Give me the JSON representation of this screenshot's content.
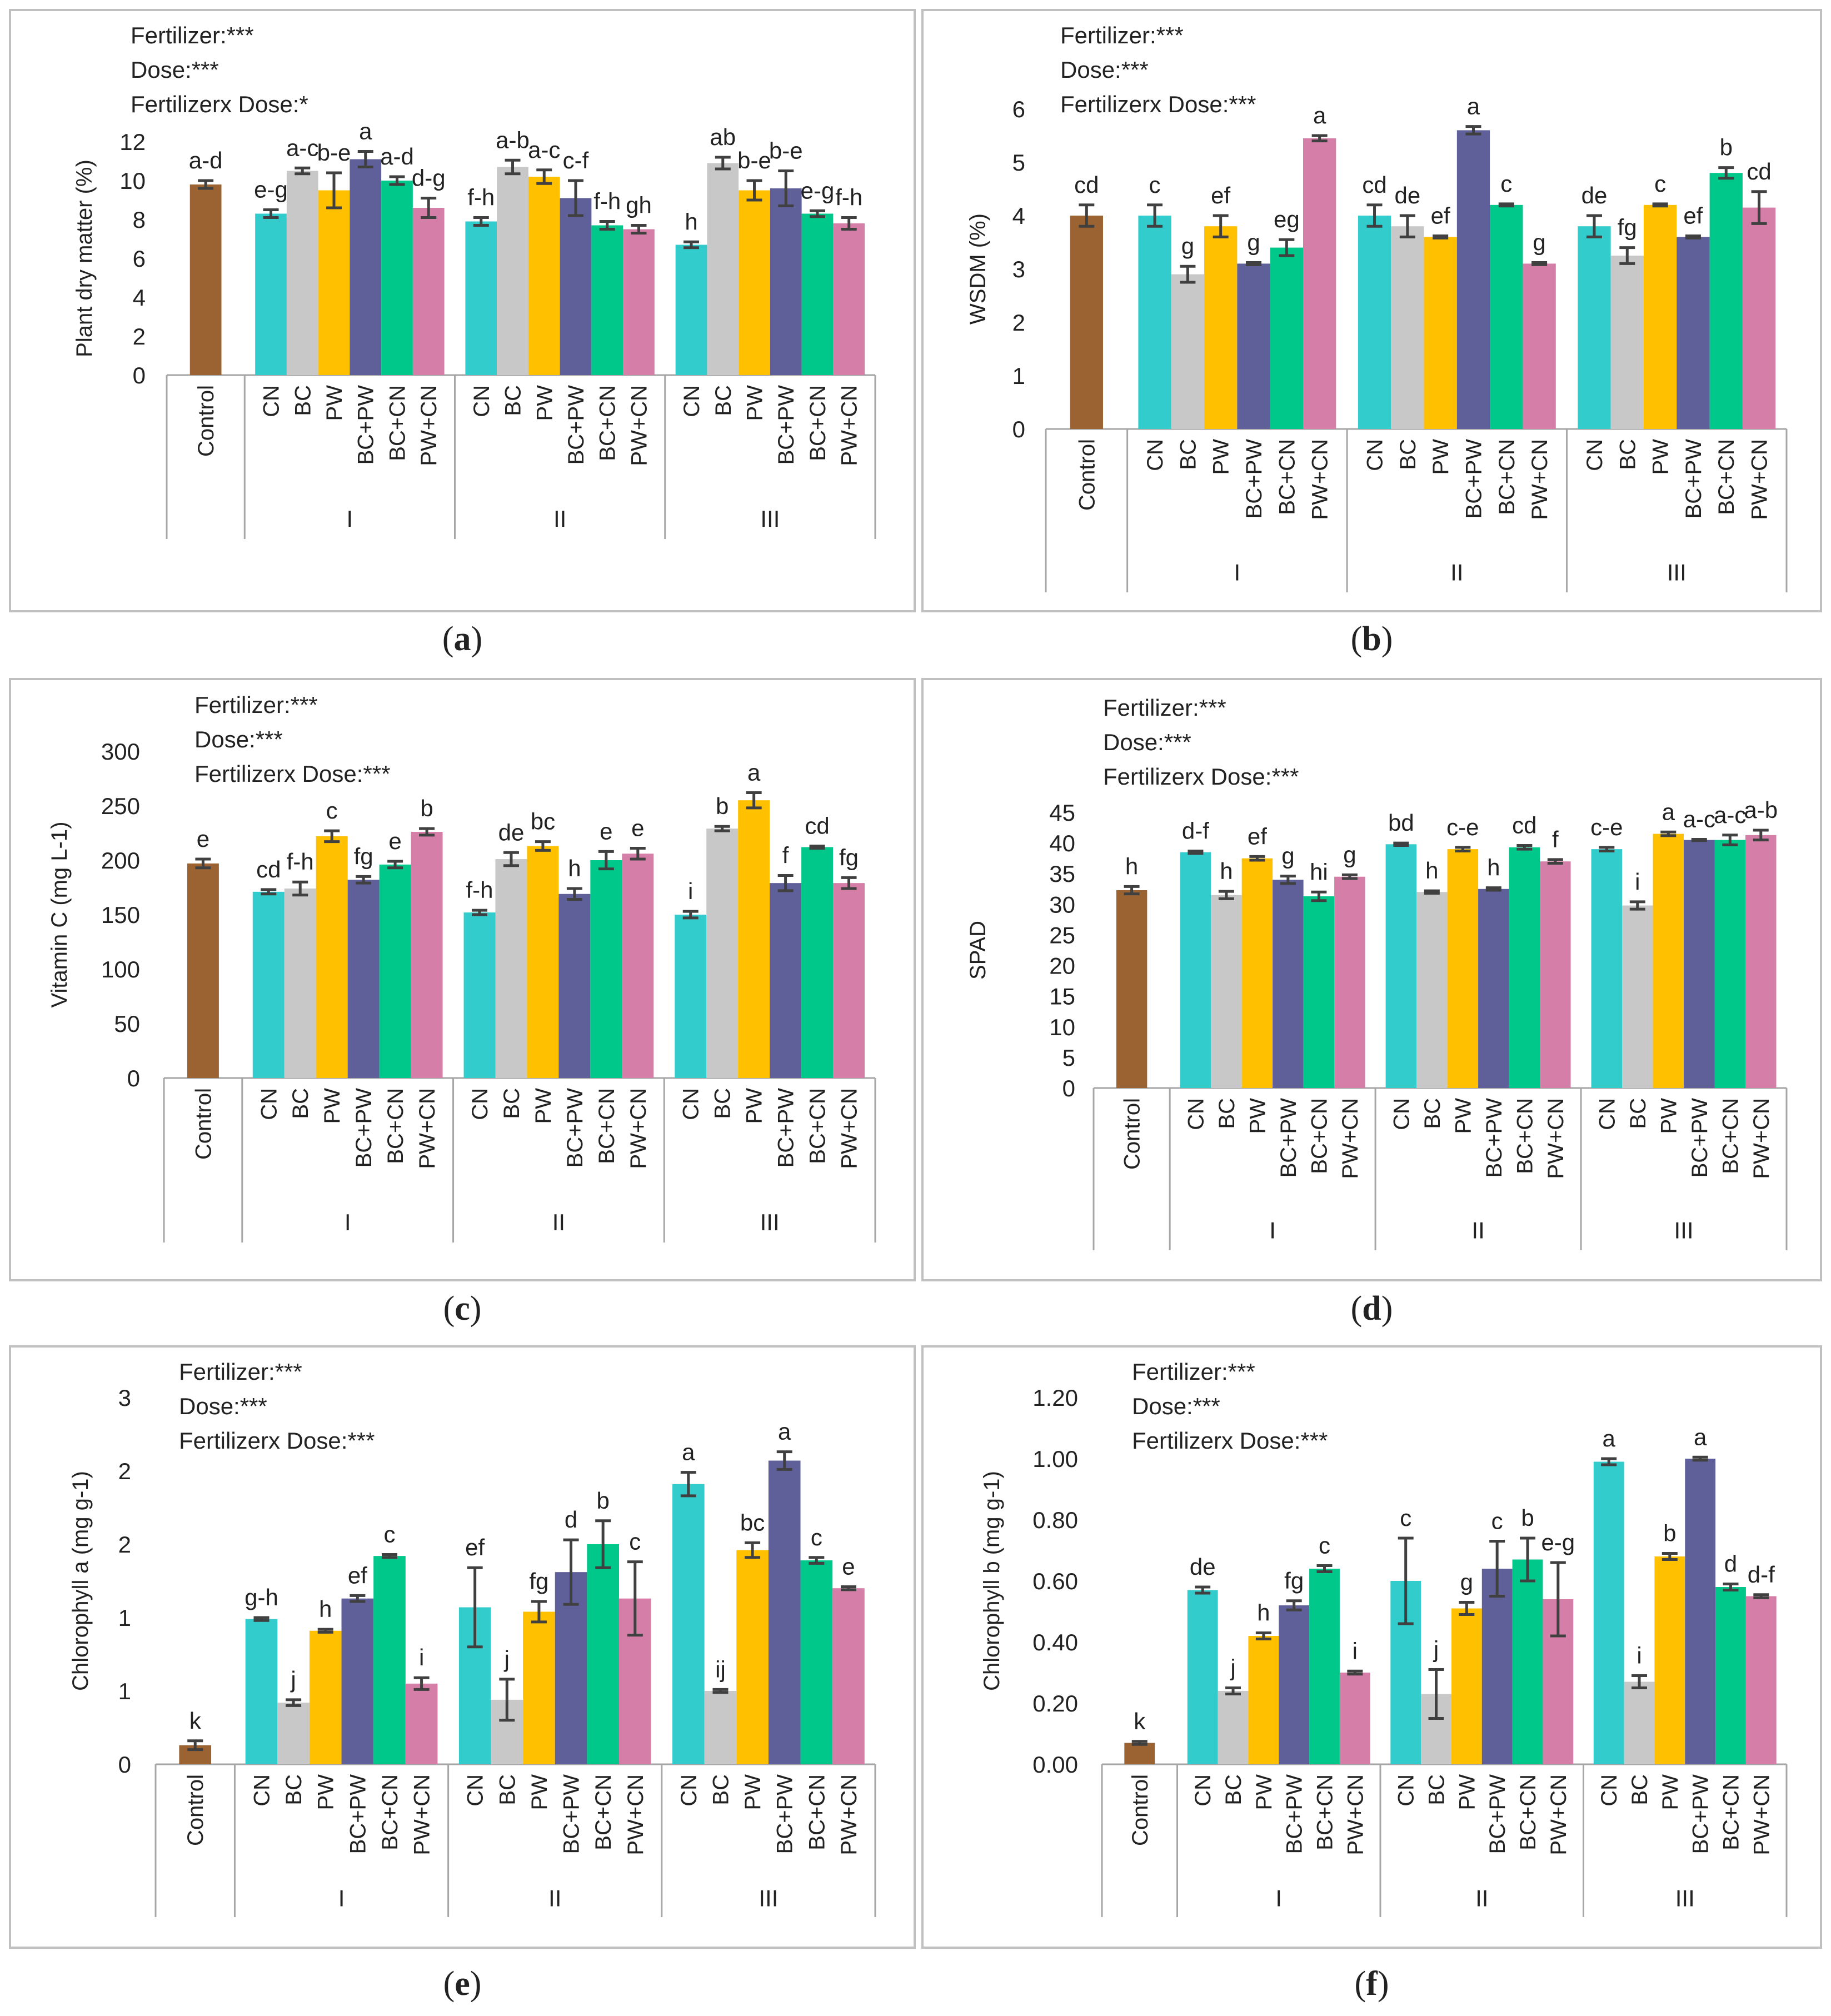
{
  "colors": {
    "control": "#9B6332",
    "CN": "#33CCCC",
    "BC": "#C8C8C8",
    "PW": "#FFC000",
    "BC+PW": "#5F5F9A",
    "BC+CN": "#00C88A",
    "PW+CN": "#D57FA8",
    "error_bar": "#404040",
    "panel_border": "#C0C0C0",
    "axis": "#A6A6A6"
  },
  "groups": [
    "I",
    "II",
    "III"
  ],
  "treatments": [
    "CN",
    "BC",
    "PW",
    "BC+PW",
    "BC+CN",
    "PW+CN"
  ],
  "control_label": "Control",
  "chart_data": [
    {
      "type": "bar",
      "panel": "a",
      "ylabel": "Plant dry matter (%)",
      "ylim": [
        0,
        12
      ],
      "ticks": [
        "0",
        "2",
        "4",
        "6",
        "8",
        "10",
        "12"
      ],
      "stats": [
        "Fertilizer:***",
        "Dose:***",
        "Fertilizerx Dose:*"
      ],
      "control": {
        "value": 9.8,
        "err": 0.2,
        "letter": "a-d"
      },
      "series": [
        {
          "group": "I",
          "values": [
            8.3,
            10.5,
            9.5,
            11.1,
            10.0,
            8.6
          ],
          "err": [
            0.2,
            0.15,
            0.9,
            0.4,
            0.2,
            0.5
          ],
          "letters": [
            "e-g",
            "a-c",
            "b-e",
            "a",
            "a-d",
            "d-g"
          ]
        },
        {
          "group": "II",
          "values": [
            7.9,
            10.7,
            10.2,
            9.1,
            7.7,
            7.5
          ],
          "err": [
            0.2,
            0.35,
            0.35,
            0.9,
            0.2,
            0.2
          ],
          "letters": [
            "f-h",
            "a-b",
            "a-c",
            "c-f",
            "f-h",
            "gh"
          ]
        },
        {
          "group": "III",
          "values": [
            6.7,
            10.9,
            9.5,
            9.6,
            8.3,
            7.8
          ],
          "err": [
            0.15,
            0.3,
            0.5,
            0.9,
            0.15,
            0.3
          ],
          "letters": [
            "h",
            "ab",
            "b-e",
            "b-e",
            "e-g",
            "f-h"
          ]
        }
      ]
    },
    {
      "type": "bar",
      "panel": "b",
      "ylabel": "WSDM (%)",
      "ylim": [
        0,
        6
      ],
      "ticks": [
        "0",
        "1",
        "2",
        "3",
        "4",
        "5",
        "6"
      ],
      "stats": [
        "Fertilizer:***",
        "Dose:***",
        "Fertilizerx Dose:***"
      ],
      "control": {
        "value": 4.0,
        "err": 0.2,
        "letter": "cd"
      },
      "series": [
        {
          "group": "I",
          "values": [
            4.0,
            2.9,
            3.8,
            3.1,
            3.4,
            5.45
          ],
          "err": [
            0.2,
            0.15,
            0.2,
            0.02,
            0.15,
            0.05
          ],
          "letters": [
            "c",
            "g",
            "ef",
            "g",
            "eg",
            "a"
          ]
        },
        {
          "group": "II",
          "values": [
            4.0,
            3.8,
            3.6,
            5.6,
            4.2,
            3.1
          ],
          "err": [
            0.2,
            0.2,
            0.02,
            0.07,
            0.02,
            0.02
          ],
          "letters": [
            "cd",
            "de",
            "ef",
            "a",
            "c",
            "g"
          ]
        },
        {
          "group": "III",
          "values": [
            3.8,
            3.25,
            4.2,
            3.6,
            4.8,
            4.15
          ],
          "err": [
            0.2,
            0.15,
            0.02,
            0.02,
            0.1,
            0.3
          ],
          "letters": [
            "de",
            "fg",
            "c",
            "ef",
            "b",
            "cd"
          ]
        }
      ]
    },
    {
      "type": "bar",
      "panel": "c",
      "ylabel": "Vitamin C (mg L-1)",
      "ylim": [
        0,
        300
      ],
      "ticks": [
        "0",
        "50",
        "100",
        "150",
        "200",
        "250",
        "300"
      ],
      "stats": [
        "Fertilizer:***",
        "Dose:***",
        "Fertilizerx Dose:***"
      ],
      "control": {
        "value": 197,
        "err": 4,
        "letter": "e"
      },
      "series": [
        {
          "group": "I",
          "values": [
            171,
            174,
            222,
            182,
            196,
            226
          ],
          "err": [
            2,
            6,
            5,
            3,
            3,
            3
          ],
          "letters": [
            "cd",
            "f-h",
            "c",
            "fg",
            "e",
            "b"
          ]
        },
        {
          "group": "II",
          "values": [
            152,
            201,
            213,
            169,
            200,
            206
          ],
          "err": [
            2,
            6,
            4,
            5,
            8,
            5
          ],
          "letters": [
            "f-h",
            "de",
            "bc",
            "h",
            "e",
            "e"
          ]
        },
        {
          "group": "III",
          "values": [
            150,
            229,
            255,
            179,
            212,
            179
          ],
          "err": [
            3,
            2,
            7,
            7,
            1,
            5
          ],
          "letters": [
            "i",
            "b",
            "a",
            "f",
            "cd",
            "fg"
          ]
        }
      ]
    },
    {
      "type": "bar",
      "panel": "d",
      "ylabel": "SPAD",
      "ylim": [
        0,
        45
      ],
      "ticks": [
        "0",
        "5",
        "10",
        "15",
        "20",
        "25",
        "30",
        "35",
        "40",
        "45"
      ],
      "stats": [
        "Fertilizer:***",
        "Dose:***",
        "Fertilizerx Dose:***"
      ],
      "control": {
        "value": 32.3,
        "err": 0.6,
        "letter": "h"
      },
      "series": [
        {
          "group": "I",
          "values": [
            38.5,
            31.5,
            37.5,
            34.0,
            31.3,
            34.5
          ],
          "err": [
            0.2,
            0.6,
            0.3,
            0.6,
            0.7,
            0.3
          ],
          "letters": [
            "d-f",
            "h",
            "ef",
            "g",
            "hi",
            "g"
          ]
        },
        {
          "group": "II",
          "values": [
            39.8,
            32.0,
            39.0,
            32.5,
            39.3,
            37.0
          ],
          "err": [
            0.2,
            0.2,
            0.3,
            0.2,
            0.3,
            0.3
          ],
          "letters": [
            "bd",
            "h",
            "c-e",
            "h",
            "cd",
            "f"
          ]
        },
        {
          "group": "III",
          "values": [
            39.0,
            29.8,
            41.5,
            40.5,
            40.5,
            41.3
          ],
          "err": [
            0.3,
            0.6,
            0.3,
            0.1,
            0.8,
            0.8
          ],
          "letters": [
            "c-e",
            "i",
            "a",
            "a-c",
            "a-c",
            "a-b"
          ]
        }
      ]
    },
    {
      "type": "bar",
      "panel": "e",
      "ylabel": "Chlorophyll a (mg g-1)",
      "ylim": [
        0,
        2.5
      ],
      "ticks": [
        "0",
        "1",
        "1",
        "2",
        "2",
        "3"
      ],
      "stats": [
        "Fertilizer:***",
        "Dose:***",
        "Fertilizerx Dose:***"
      ],
      "control": {
        "value": 0.13,
        "err": 0.03,
        "letter": "k"
      },
      "series": [
        {
          "group": "I",
          "values": [
            0.99,
            0.42,
            0.91,
            1.13,
            1.42,
            0.55
          ],
          "err": [
            0.01,
            0.02,
            0.01,
            0.02,
            0.01,
            0.04
          ],
          "letters": [
            "g-h",
            "j",
            "h",
            "ef",
            "c",
            "i"
          ]
        },
        {
          "group": "II",
          "values": [
            1.07,
            0.44,
            1.04,
            1.31,
            1.5,
            1.13
          ],
          "err": [
            0.27,
            0.14,
            0.07,
            0.22,
            0.16,
            0.25
          ],
          "letters": [
            "ef",
            "j",
            "fg",
            "d",
            "b",
            "c"
          ]
        },
        {
          "group": "III",
          "values": [
            1.91,
            0.5,
            1.46,
            2.07,
            1.39,
            1.2
          ],
          "err": [
            0.08,
            0.01,
            0.05,
            0.06,
            0.02,
            0.01
          ],
          "letters": [
            "a",
            "ij",
            "bc",
            "a",
            "c",
            "e"
          ]
        }
      ]
    },
    {
      "type": "bar",
      "panel": "f",
      "ylabel": "Chlorophyll b (mg g-1)",
      "ylim": [
        0,
        1.2
      ],
      "ticks": [
        "0.00",
        "0.20",
        "0.40",
        "0.60",
        "0.80",
        "1.00",
        "1.20"
      ],
      "stats": [
        "Fertilizer:***",
        "Dose:***",
        "Fertilizerx Dose:***"
      ],
      "control": {
        "value": 0.07,
        "err": 0.005,
        "letter": "k"
      },
      "series": [
        {
          "group": "I",
          "values": [
            0.57,
            0.24,
            0.42,
            0.52,
            0.64,
            0.3
          ],
          "err": [
            0.01,
            0.01,
            0.01,
            0.015,
            0.01,
            0.005
          ],
          "letters": [
            "de",
            "j",
            "h",
            "fg",
            "c",
            "i"
          ]
        },
        {
          "group": "II",
          "values": [
            0.6,
            0.23,
            0.51,
            0.64,
            0.67,
            0.54
          ],
          "err": [
            0.14,
            0.08,
            0.02,
            0.09,
            0.07,
            0.12
          ],
          "letters": [
            "c",
            "j",
            "g",
            "c",
            "b",
            "e-g"
          ]
        },
        {
          "group": "III",
          "values": [
            0.99,
            0.27,
            0.68,
            1.0,
            0.58,
            0.55
          ],
          "err": [
            0.01,
            0.02,
            0.01,
            0.005,
            0.01,
            0.005
          ],
          "letters": [
            "a",
            "i",
            "b",
            "a",
            "d",
            "d-f"
          ]
        }
      ]
    }
  ],
  "panel_labels": [
    "(a)",
    "(b)",
    "(c)",
    "(d)",
    "(e)",
    "(f)"
  ]
}
